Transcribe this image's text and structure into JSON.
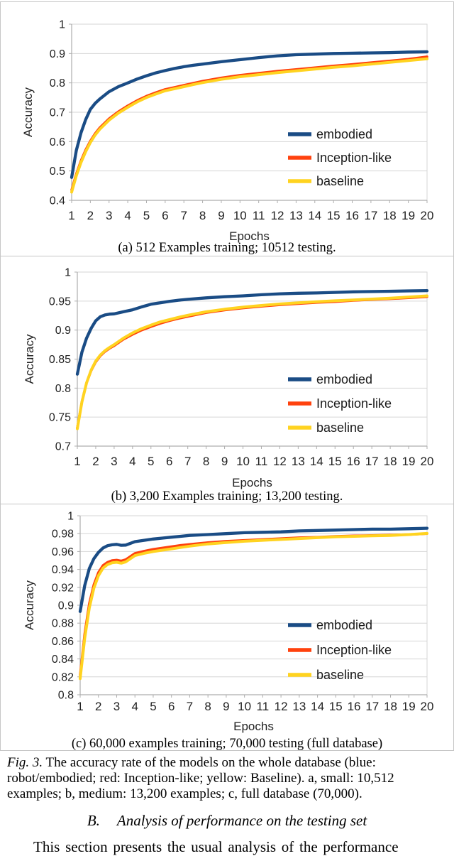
{
  "figure_caption": {
    "label": "Fig. 3.",
    "text": " The accuracy rate of the models on the whole database (blue: robot/embodied; red: Inception-like; yellow: Baseline). a, small: 10,512 examples; b, medium: 13,200 examples; c, full database (70,000)."
  },
  "section_heading": {
    "label": "B.",
    "title": "Analysis of performance on the testing set"
  },
  "body_text": "This section presents the usual analysis of the performance",
  "colors": {
    "embodied": "#1a4c85",
    "inception": "#ff420e",
    "baseline": "#ffd320",
    "gridline": "#d6d6d6",
    "axis": "#adadad",
    "panel_border": "#c6c6c6"
  },
  "chart_data": [
    {
      "type": "line",
      "caption": "(a) 512 Examples training; 10512 testing.",
      "xlabel": "Epochs",
      "ylabel": "Accuracy",
      "xlim": [
        1,
        20
      ],
      "ylim": [
        0.4,
        1
      ],
      "xticks": [
        1,
        2,
        3,
        4,
        5,
        6,
        7,
        8,
        9,
        10,
        11,
        12,
        13,
        14,
        15,
        16,
        17,
        18,
        19,
        20
      ],
      "yticks": [
        0.4,
        0.5,
        0.6,
        0.7,
        0.8,
        0.9,
        1
      ],
      "ytick_labels": [
        "0.4",
        "0.5",
        "0.6",
        "0.7",
        "0.8",
        "0.9",
        "1"
      ],
      "grid": "horizontal",
      "legend_position": "inside-right",
      "series": [
        {
          "name": "embodied",
          "color": "#1a4c85",
          "x": [
            1,
            1.25,
            1.5,
            1.75,
            2,
            2.25,
            2.5,
            3,
            3.5,
            4,
            4.5,
            5,
            5.5,
            6,
            6.5,
            7,
            7.5,
            8,
            9,
            10,
            11,
            12,
            13,
            14,
            15,
            16,
            17,
            18,
            19,
            20
          ],
          "y": [
            0.478,
            0.57,
            0.63,
            0.675,
            0.71,
            0.73,
            0.745,
            0.77,
            0.787,
            0.8,
            0.813,
            0.824,
            0.834,
            0.842,
            0.849,
            0.855,
            0.86,
            0.864,
            0.872,
            0.879,
            0.886,
            0.892,
            0.896,
            0.898,
            0.9,
            0.901,
            0.902,
            0.903,
            0.905,
            0.906
          ]
        },
        {
          "name": "Inception-like",
          "color": "#ff420e",
          "x": [
            1,
            1.25,
            1.5,
            1.75,
            2,
            2.25,
            2.5,
            3,
            3.5,
            4,
            4.5,
            5,
            5.5,
            6,
            6.5,
            7,
            7.5,
            8,
            9,
            10,
            11,
            12,
            13,
            14,
            15,
            16,
            17,
            18,
            19,
            20
          ],
          "y": [
            0.435,
            0.49,
            0.535,
            0.572,
            0.602,
            0.627,
            0.647,
            0.678,
            0.702,
            0.722,
            0.74,
            0.755,
            0.767,
            0.778,
            0.785,
            0.792,
            0.799,
            0.806,
            0.817,
            0.826,
            0.833,
            0.84,
            0.846,
            0.852,
            0.858,
            0.863,
            0.869,
            0.875,
            0.881,
            0.889
          ]
        },
        {
          "name": "baseline",
          "color": "#ffd320",
          "x": [
            1,
            1.25,
            1.5,
            1.75,
            2,
            2.25,
            2.5,
            3,
            3.5,
            4,
            4.5,
            5,
            5.5,
            6,
            6.5,
            7,
            7.5,
            8,
            9,
            10,
            11,
            12,
            13,
            14,
            15,
            16,
            17,
            18,
            19,
            20
          ],
          "y": [
            0.428,
            0.484,
            0.529,
            0.566,
            0.597,
            0.622,
            0.642,
            0.673,
            0.697,
            0.717,
            0.735,
            0.75,
            0.762,
            0.773,
            0.78,
            0.787,
            0.794,
            0.801,
            0.812,
            0.821,
            0.828,
            0.835,
            0.841,
            0.847,
            0.853,
            0.858,
            0.864,
            0.87,
            0.876,
            0.882
          ]
        }
      ]
    },
    {
      "type": "line",
      "caption": "(b) 3,200 Examples training; 13,200 testing.",
      "xlabel": "Epochs",
      "ylabel": "Accuracy",
      "xlim": [
        1,
        20
      ],
      "ylim": [
        0.7,
        1
      ],
      "xticks": [
        1,
        2,
        3,
        4,
        5,
        6,
        7,
        8,
        9,
        10,
        11,
        12,
        13,
        14,
        15,
        16,
        17,
        18,
        19,
        20
      ],
      "yticks": [
        0.7,
        0.75,
        0.8,
        0.85,
        0.9,
        0.95,
        1
      ],
      "ytick_labels": [
        "0.7",
        "0.75",
        "0.8",
        "0.85",
        "0.9",
        "0.95",
        "1"
      ],
      "grid": "horizontal",
      "legend_position": "inside-right",
      "series": [
        {
          "name": "embodied",
          "color": "#1a4c85",
          "x": [
            1,
            1.25,
            1.5,
            1.75,
            2,
            2.25,
            2.5,
            2.75,
            3,
            3.5,
            4,
            4.5,
            5,
            5.5,
            6,
            6.5,
            7,
            8,
            9,
            10,
            11,
            12,
            13,
            14,
            15,
            16,
            17,
            18,
            19,
            20
          ],
          "y": [
            0.824,
            0.862,
            0.886,
            0.903,
            0.916,
            0.923,
            0.926,
            0.9275,
            0.928,
            0.9315,
            0.935,
            0.94,
            0.9445,
            0.947,
            0.9495,
            0.9515,
            0.953,
            0.9555,
            0.9575,
            0.959,
            0.961,
            0.9625,
            0.9635,
            0.964,
            0.965,
            0.966,
            0.9665,
            0.967,
            0.9675,
            0.968
          ]
        },
        {
          "name": "Inception-like",
          "color": "#ff420e",
          "x": [
            1,
            1.25,
            1.5,
            1.75,
            2,
            2.25,
            2.5,
            2.75,
            3,
            3.5,
            4,
            4.5,
            5,
            5.5,
            6,
            6.5,
            7,
            8,
            9,
            10,
            11,
            12,
            13,
            14,
            15,
            16,
            17,
            18,
            19,
            20
          ],
          "y": [
            0.732,
            0.777,
            0.809,
            0.83,
            0.845,
            0.8555,
            0.863,
            0.8685,
            0.873,
            0.884,
            0.8925,
            0.9,
            0.906,
            0.9115,
            0.916,
            0.92,
            0.9235,
            0.93,
            0.9345,
            0.938,
            0.941,
            0.9435,
            0.9455,
            0.9475,
            0.949,
            0.951,
            0.9525,
            0.954,
            0.9555,
            0.9575
          ]
        },
        {
          "name": "baseline",
          "color": "#ffd320",
          "x": [
            1,
            1.25,
            1.5,
            1.75,
            2,
            2.25,
            2.5,
            2.75,
            3,
            3.5,
            4,
            4.5,
            5,
            5.5,
            6,
            6.5,
            7,
            8,
            9,
            10,
            11,
            12,
            13,
            14,
            15,
            16,
            17,
            18,
            19,
            20
          ],
          "y": [
            0.73,
            0.776,
            0.809,
            0.831,
            0.8465,
            0.857,
            0.8645,
            0.87,
            0.875,
            0.886,
            0.895,
            0.9025,
            0.9085,
            0.914,
            0.918,
            0.922,
            0.9255,
            0.9315,
            0.936,
            0.9395,
            0.9425,
            0.945,
            0.947,
            0.949,
            0.9505,
            0.952,
            0.9535,
            0.955,
            0.957,
            0.959
          ]
        }
      ]
    },
    {
      "type": "line",
      "caption": "(c) 60,000 examples training; 70,000 testing (full database)",
      "xlabel": "Epochs",
      "ylabel": "Accuracy",
      "xlim": [
        1,
        20
      ],
      "ylim": [
        0.8,
        1
      ],
      "xticks": [
        1,
        2,
        3,
        4,
        5,
        6,
        7,
        8,
        9,
        10,
        11,
        12,
        13,
        14,
        15,
        16,
        17,
        18,
        19,
        20
      ],
      "yticks": [
        0.8,
        0.82,
        0.84,
        0.86,
        0.88,
        0.9,
        0.92,
        0.94,
        0.96,
        0.98,
        1
      ],
      "ytick_labels": [
        "0.8",
        "0.82",
        "0.84",
        "0.86",
        "0.88",
        "0.9",
        "0.92",
        "0.94",
        "0.96",
        "0.98",
        "1"
      ],
      "grid": "horizontal",
      "legend_position": "inside-right",
      "series": [
        {
          "name": "embodied",
          "color": "#1a4c85",
          "x": [
            1,
            1.25,
            1.5,
            1.75,
            2,
            2.25,
            2.5,
            2.75,
            3,
            3.25,
            3.5,
            4,
            4.5,
            5,
            5.5,
            6,
            6.5,
            7,
            8,
            9,
            10,
            11,
            12,
            13,
            14,
            15,
            16,
            17,
            18,
            19,
            20
          ],
          "y": [
            0.893,
            0.922,
            0.941,
            0.952,
            0.959,
            0.964,
            0.9665,
            0.9675,
            0.968,
            0.967,
            0.9672,
            0.971,
            0.9725,
            0.974,
            0.975,
            0.976,
            0.977,
            0.978,
            0.979,
            0.98,
            0.981,
            0.9815,
            0.982,
            0.983,
            0.9835,
            0.984,
            0.9845,
            0.985,
            0.985,
            0.9855,
            0.986
          ]
        },
        {
          "name": "Inception-like",
          "color": "#ff420e",
          "x": [
            1,
            1.25,
            1.5,
            1.75,
            2,
            2.25,
            2.5,
            2.75,
            3,
            3.25,
            3.5,
            4,
            4.5,
            5,
            5.5,
            6,
            6.5,
            7,
            8,
            9,
            10,
            11,
            12,
            13,
            14,
            15,
            16,
            17,
            18,
            19,
            20
          ],
          "y": [
            0.822,
            0.868,
            0.902,
            0.923,
            0.9365,
            0.9445,
            0.948,
            0.95,
            0.9505,
            0.9495,
            0.951,
            0.958,
            0.9605,
            0.9625,
            0.964,
            0.9655,
            0.967,
            0.968,
            0.97,
            0.9715,
            0.9725,
            0.9735,
            0.9745,
            0.9755,
            0.976,
            0.977,
            0.9775,
            0.978,
            0.9785,
            0.979,
            0.98
          ]
        },
        {
          "name": "baseline",
          "color": "#ffd320",
          "x": [
            1,
            1.25,
            1.5,
            1.75,
            2,
            2.25,
            2.5,
            2.75,
            3,
            3.25,
            3.5,
            4,
            4.5,
            5,
            5.5,
            6,
            6.5,
            7,
            8,
            9,
            10,
            11,
            12,
            13,
            14,
            15,
            16,
            17,
            18,
            19,
            20
          ],
          "y": [
            0.818,
            0.863,
            0.897,
            0.919,
            0.933,
            0.9415,
            0.9455,
            0.9475,
            0.948,
            0.947,
            0.9485,
            0.9555,
            0.958,
            0.96,
            0.9615,
            0.963,
            0.9645,
            0.966,
            0.9685,
            0.97,
            0.9715,
            0.9725,
            0.9735,
            0.9745,
            0.9755,
            0.9765,
            0.977,
            0.9775,
            0.978,
            0.979,
            0.9802
          ]
        }
      ]
    }
  ]
}
